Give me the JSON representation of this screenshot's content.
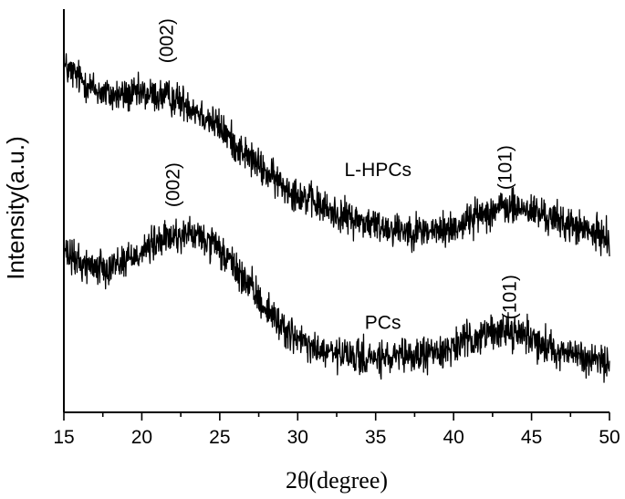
{
  "chart_data": {
    "type": "line",
    "xlabel": "2θ(degree)",
    "ylabel": "Intensity(a.u.)",
    "xlim": [
      15,
      50
    ],
    "xticks": [
      15,
      20,
      25,
      30,
      35,
      40,
      45,
      50
    ],
    "y_tick_labels_shown": false,
    "grid": false,
    "series": [
      {
        "name": "L-HPCs",
        "color": "#000000",
        "noise": 0.6,
        "x": [
          15,
          16,
          17,
          18,
          19,
          20,
          21,
          22,
          23,
          24,
          25,
          26,
          27,
          28,
          29,
          30,
          31,
          32,
          33,
          34,
          35,
          36,
          37,
          38,
          39,
          40,
          41,
          42,
          43,
          44,
          45,
          46,
          47,
          48,
          49,
          50
        ],
        "y": [
          12.0,
          11.6,
          11.2,
          11.0,
          11.0,
          11.05,
          11.0,
          10.9,
          10.7,
          10.3,
          9.9,
          9.3,
          8.8,
          8.3,
          7.9,
          7.6,
          7.3,
          7.0,
          6.8,
          6.65,
          6.5,
          6.4,
          6.35,
          6.3,
          6.3,
          6.4,
          6.7,
          6.95,
          7.1,
          7.1,
          7.0,
          6.8,
          6.6,
          6.4,
          6.2,
          6.1
        ]
      },
      {
        "name": "PCs",
        "color": "#000000",
        "noise": 0.6,
        "x": [
          15,
          16,
          17,
          18,
          19,
          20,
          21,
          22,
          23,
          24,
          25,
          26,
          27,
          28,
          29,
          30,
          31,
          32,
          33,
          34,
          35,
          36,
          37,
          38,
          39,
          40,
          41,
          42,
          43,
          44,
          45,
          46,
          47,
          48,
          49,
          50
        ],
        "y": [
          5.5,
          5.2,
          5.05,
          5.1,
          5.3,
          5.6,
          5.9,
          6.1,
          6.2,
          6.0,
          5.6,
          5.0,
          4.3,
          3.6,
          3.0,
          2.5,
          2.2,
          2.05,
          1.95,
          1.9,
          1.85,
          1.85,
          1.9,
          2.0,
          2.1,
          2.3,
          2.5,
          2.7,
          2.85,
          2.8,
          2.6,
          2.3,
          2.1,
          1.95,
          1.8,
          1.7
        ]
      }
    ],
    "annotations": [
      {
        "text": "(002)",
        "x": 22.0,
        "y": 12.9,
        "rotate": -90
      },
      {
        "text": "L-HPCs",
        "x": 33.0,
        "y": 8.2,
        "rotate": 0
      },
      {
        "text": "(101)",
        "x": 43.7,
        "y": 8.5,
        "rotate": -90
      },
      {
        "text": "(002)",
        "x": 22.4,
        "y": 7.9,
        "rotate": -90
      },
      {
        "text": "PCs",
        "x": 34.3,
        "y": 2.9,
        "rotate": 0
      },
      {
        "text": "(101)",
        "x": 44.0,
        "y": 4.0,
        "rotate": -90
      }
    ]
  }
}
